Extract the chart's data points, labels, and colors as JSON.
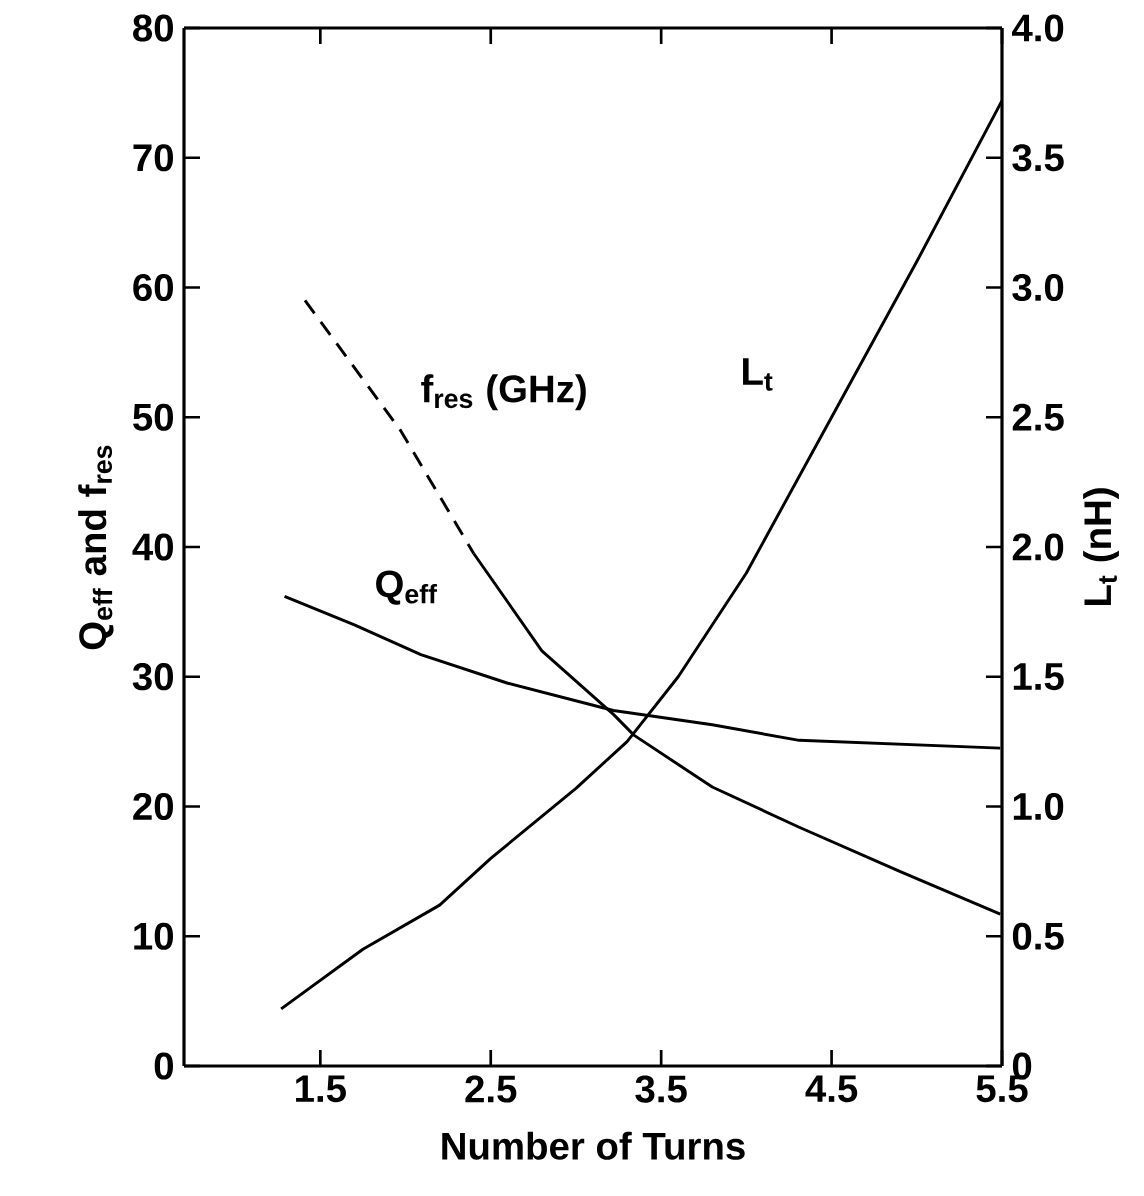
{
  "chart_data": {
    "type": "line",
    "xlabel": "Number of Turns",
    "ylabel": "Q$_{eff}$ and f$_{res}$",
    "y2label": "L$_{t}$ (nH)",
    "xlim": [
      0.7,
      5.5
    ],
    "xticks": [
      1.5,
      2.5,
      3.5,
      4.5,
      5.5
    ],
    "ylim": [
      0,
      80
    ],
    "yticks": [
      0,
      10,
      20,
      30,
      40,
      50,
      60,
      70,
      80
    ],
    "y2lim": [
      0,
      4
    ],
    "y2ticks": [
      0,
      0.5,
      {
        "value": 1,
        "label": "1.0"
      },
      1.5,
      {
        "value": 2,
        "label": "2.0"
      },
      2.5,
      {
        "value": 3,
        "label": "3.0"
      },
      3.5,
      {
        "value": 4,
        "label": "4.0"
      }
    ],
    "grid": false,
    "legend": false,
    "marker": "none",
    "series": [
      {
        "name": "f$_{res}$ (GHz)",
        "color": "#000000",
        "line_style": "dashed",
        "x": [
          1.41,
          1.97,
          2.4
        ],
        "values": [
          59,
          49,
          39.5
        ]
      },
      {
        "color": "#000000",
        "line_style": "solid",
        "x": [
          2.4,
          2.8,
          3.22,
          3.34,
          3.8,
          4.31,
          4.9,
          5.49
        ],
        "values": [
          39.5,
          32,
          27.1,
          25.5,
          21.5,
          18.4,
          15,
          11.7
        ]
      },
      {
        "name": "Q$_{eff}$",
        "color": "#000000",
        "line_style": "solid",
        "x": [
          1.29,
          1.7,
          2.09,
          2.6,
          3.22,
          3.8,
          4.31,
          4.9,
          5.49
        ],
        "values": [
          36.2,
          34,
          31.7,
          29.5,
          27.4,
          26.3,
          25.1,
          24.8,
          24.5
        ]
      },
      {
        "name": "L$_{t}$",
        "color": "#000000",
        "line_style": "solid",
        "axis": "y2",
        "x": [
          1.27,
          1.75,
          2.2,
          2.5,
          3.0,
          3.3,
          3.6,
          4.0,
          4.5,
          5.0,
          5.5
        ],
        "values": [
          0.22,
          0.45,
          0.62,
          0.8,
          1.07,
          1.25,
          1.5,
          1.9,
          2.5,
          3.1,
          3.72
        ]
      }
    ]
  }
}
